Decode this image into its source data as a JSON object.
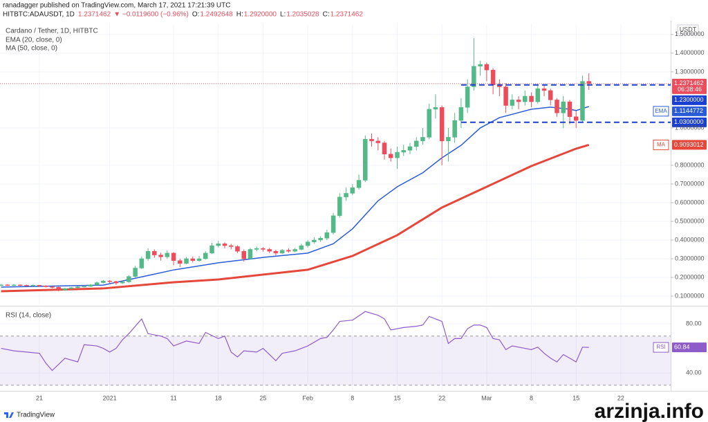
{
  "header": {
    "publisher": "ranadagger published on TradingView.com, March 17, 2021 17:21:39 UTC",
    "symbol": "HITBTC:ADAUSDT, 1D",
    "last": "1.2371462",
    "change": "▼ −0.0119600 (−0.96%)",
    "ohlc": [
      "O:",
      "1.2492648",
      "H:",
      "1.2920000",
      "L:",
      "1.2035028",
      "C:",
      "1.2371462"
    ]
  },
  "chart_data": [
    {
      "type": "candlestick",
      "title": "Cardano / Tether, 1D, HITBTC",
      "unit": "USDT",
      "up_color": "#53b987",
      "down_color": "#eb4d5c",
      "grid": true,
      "xlim": [
        -0.17,
        104.8
      ],
      "ylim": [
        0.0556,
        1.555
      ],
      "xticks": [
        {
          "value": 6,
          "label": "21"
        },
        {
          "value": 17,
          "label": "2021"
        },
        {
          "value": 27,
          "label": "11"
        },
        {
          "value": 34,
          "label": "18"
        },
        {
          "value": 41,
          "label": "25"
        },
        {
          "value": 48,
          "label": "Feb"
        },
        {
          "value": 55,
          "label": "8"
        },
        {
          "value": 62,
          "label": "15"
        },
        {
          "value": 69,
          "label": "22"
        },
        {
          "value": 76,
          "label": "Mar"
        },
        {
          "value": 83,
          "label": "8"
        },
        {
          "value": 90,
          "label": "15"
        },
        {
          "value": 97,
          "label": "22"
        }
      ],
      "yticks": [
        {
          "value": 0.1,
          "label": "0.1000000"
        },
        {
          "value": 0.2,
          "label": "0.2000000"
        },
        {
          "value": 0.3,
          "label": "0.3000000"
        },
        {
          "value": 0.4,
          "label": "0.4000000"
        },
        {
          "value": 0.5,
          "label": "0.5000000"
        },
        {
          "value": 0.6,
          "label": "0.6000000"
        },
        {
          "value": 0.7,
          "label": "0.7000000"
        },
        {
          "value": 0.8,
          "label": "0.8000000"
        },
        {
          "value": 1.0,
          "label": "1.0000000"
        },
        {
          "value": 1.3,
          "label": "1.3000000"
        },
        {
          "value": 1.4,
          "label": "1.4000000"
        },
        {
          "value": 1.5,
          "label": "1.5000000"
        }
      ],
      "candles": {
        "x": [
          0,
          1,
          2,
          3,
          4,
          5,
          6,
          7,
          8,
          9,
          10,
          11,
          12,
          13,
          14,
          15,
          16,
          17,
          18,
          19,
          20,
          21,
          22,
          23,
          24,
          25,
          26,
          27,
          28,
          29,
          30,
          31,
          32,
          33,
          34,
          35,
          36,
          37,
          38,
          39,
          40,
          41,
          42,
          43,
          44,
          45,
          46,
          47,
          48,
          49,
          50,
          51,
          52,
          53,
          54,
          55,
          56,
          57,
          58,
          59,
          60,
          61,
          62,
          63,
          64,
          65,
          66,
          67,
          68,
          69,
          70,
          71,
          72,
          73,
          74,
          75,
          76,
          77,
          78,
          79,
          80,
          81,
          82,
          83,
          84,
          85,
          86,
          87,
          88,
          89,
          90,
          91,
          92
        ],
        "open": [
          0.158,
          0.16,
          0.158,
          0.16,
          0.158,
          0.156,
          0.158,
          0.155,
          0.15,
          0.148,
          0.132,
          0.14,
          0.145,
          0.15,
          0.152,
          0.16,
          0.172,
          0.181,
          0.178,
          0.17,
          0.176,
          0.205,
          0.25,
          0.3,
          0.34,
          0.32,
          0.31,
          0.33,
          0.29,
          0.275,
          0.3,
          0.29,
          0.3,
          0.33,
          0.37,
          0.38,
          0.37,
          0.365,
          0.34,
          0.3,
          0.35,
          0.355,
          0.35,
          0.34,
          0.33,
          0.345,
          0.34,
          0.35,
          0.37,
          0.39,
          0.4,
          0.41,
          0.44,
          0.53,
          0.63,
          0.65,
          0.68,
          0.72,
          0.94,
          0.93,
          0.92,
          0.86,
          0.84,
          0.87,
          0.88,
          0.9,
          0.93,
          0.95,
          1.1,
          1.11,
          0.93,
          0.95,
          1.04,
          1.11,
          1.22,
          1.33,
          1.34,
          1.31,
          1.23,
          1.22,
          1.12,
          1.15,
          1.14,
          1.17,
          1.14,
          1.21,
          1.2,
          1.15,
          1.08,
          1.14,
          1.06,
          1.04,
          1.2492648
        ],
        "high": [
          0.164,
          0.163,
          0.164,
          0.162,
          0.161,
          0.162,
          0.16,
          0.158,
          0.153,
          0.15,
          0.145,
          0.149,
          0.154,
          0.157,
          0.165,
          0.178,
          0.186,
          0.186,
          0.182,
          0.185,
          0.212,
          0.262,
          0.312,
          0.355,
          0.35,
          0.332,
          0.345,
          0.335,
          0.3,
          0.31,
          0.312,
          0.315,
          0.34,
          0.385,
          0.395,
          0.388,
          0.38,
          0.372,
          0.35,
          0.358,
          0.365,
          0.362,
          0.358,
          0.348,
          0.352,
          0.355,
          0.358,
          0.38,
          0.4,
          0.415,
          0.42,
          0.455,
          0.545,
          0.65,
          0.68,
          0.7,
          0.75,
          0.96,
          0.97,
          0.95,
          0.93,
          0.89,
          0.9,
          0.91,
          0.92,
          0.95,
          1.0,
          1.13,
          1.18,
          1.12,
          1.0,
          1.08,
          1.16,
          1.26,
          1.48,
          1.36,
          1.35,
          1.32,
          1.26,
          1.24,
          1.18,
          1.17,
          1.2,
          1.19,
          1.23,
          1.23,
          1.21,
          1.16,
          1.17,
          1.15,
          1.09,
          1.28,
          1.292
        ],
        "low": [
          0.155,
          0.155,
          0.154,
          0.153,
          0.152,
          0.153,
          0.15,
          0.146,
          0.142,
          0.126,
          0.128,
          0.137,
          0.142,
          0.146,
          0.149,
          0.158,
          0.168,
          0.17,
          0.16,
          0.165,
          0.172,
          0.2,
          0.245,
          0.29,
          0.305,
          0.29,
          0.3,
          0.265,
          0.255,
          0.27,
          0.28,
          0.285,
          0.295,
          0.325,
          0.36,
          0.355,
          0.35,
          0.33,
          0.285,
          0.295,
          0.34,
          0.338,
          0.33,
          0.318,
          0.325,
          0.332,
          0.335,
          0.345,
          0.36,
          0.38,
          0.39,
          0.4,
          0.43,
          0.52,
          0.61,
          0.64,
          0.67,
          0.71,
          0.9,
          0.88,
          0.83,
          0.82,
          0.78,
          0.85,
          0.86,
          0.88,
          0.91,
          0.94,
          1.05,
          0.8,
          0.82,
          0.92,
          1.0,
          1.08,
          1.2,
          1.28,
          1.25,
          1.18,
          1.17,
          1.08,
          1.1,
          1.1,
          1.12,
          1.11,
          1.13,
          1.17,
          1.12,
          1.06,
          1.0,
          1.02,
          1.0,
          1.03,
          1.2035028
        ],
        "close": [
          0.16,
          0.158,
          0.16,
          0.158,
          0.156,
          0.158,
          0.155,
          0.15,
          0.148,
          0.132,
          0.14,
          0.145,
          0.15,
          0.152,
          0.16,
          0.172,
          0.181,
          0.178,
          0.17,
          0.176,
          0.205,
          0.25,
          0.3,
          0.34,
          0.32,
          0.31,
          0.33,
          0.29,
          0.275,
          0.3,
          0.29,
          0.3,
          0.33,
          0.37,
          0.38,
          0.37,
          0.365,
          0.34,
          0.3,
          0.35,
          0.355,
          0.35,
          0.34,
          0.33,
          0.345,
          0.34,
          0.35,
          0.37,
          0.39,
          0.4,
          0.41,
          0.44,
          0.53,
          0.63,
          0.65,
          0.68,
          0.72,
          0.94,
          0.93,
          0.92,
          0.86,
          0.84,
          0.87,
          0.88,
          0.9,
          0.93,
          0.95,
          1.1,
          1.11,
          0.93,
          0.95,
          1.04,
          1.11,
          1.22,
          1.33,
          1.34,
          1.31,
          1.23,
          1.22,
          1.12,
          1.15,
          1.14,
          1.17,
          1.14,
          1.21,
          1.2,
          1.15,
          1.08,
          1.14,
          1.06,
          1.04,
          1.2492648,
          1.2371462
        ]
      },
      "overlays": [
        {
          "name": "EMA (20, close, 0)",
          "short": "EMA",
          "color": "#2a5bd7",
          "width": 1.5,
          "x": [
            0,
            16,
            23,
            27,
            34,
            41,
            48,
            52,
            55,
            59,
            62,
            66,
            69,
            72,
            75,
            78,
            83,
            86,
            89,
            90,
            92
          ],
          "values": [
            0.148,
            0.159,
            0.21,
            0.24,
            0.278,
            0.307,
            0.33,
            0.38,
            0.46,
            0.61,
            0.685,
            0.76,
            0.84,
            0.907,
            1.0,
            1.055,
            1.1,
            1.111,
            1.1,
            1.093,
            1.1144772
          ]
        },
        {
          "name": "MA (50, close, 0)",
          "short": "MA",
          "color": "#e5473a",
          "width": 3,
          "x": [
            0,
            16,
            27,
            34,
            48,
            55,
            62,
            69,
            76,
            83,
            90,
            92
          ],
          "values": [
            0.126,
            0.141,
            0.174,
            0.189,
            0.241,
            0.315,
            0.426,
            0.574,
            0.685,
            0.796,
            0.889,
            0.9093012
          ]
        }
      ],
      "levels": [
        {
          "value": 1.23,
          "label": "1.2300000"
        },
        {
          "value": 1.03,
          "label": "1.0300000"
        }
      ],
      "level_color": "#1a3fd1",
      "level_from": 72,
      "countdown": "06:38:46"
    },
    {
      "type": "line",
      "title": "RSI (14, close)",
      "ylim": [
        25.4,
        93
      ],
      "yticks": [
        {
          "value": 80,
          "label": "80.00"
        },
        {
          "value": 40,
          "label": "40.00"
        }
      ],
      "band": [
        30,
        70
      ],
      "band_color": "#7e57c2",
      "series": [
        {
          "name": "RSI",
          "color": "#8e5cc9",
          "x": [
            0,
            2,
            4,
            6,
            7,
            8,
            10,
            12,
            13,
            15,
            16,
            17,
            18,
            19,
            20,
            22,
            23,
            25,
            26,
            27,
            29,
            31,
            32,
            34,
            35,
            36,
            37,
            38,
            40,
            41,
            42,
            43,
            44,
            46,
            48,
            50,
            51,
            52,
            53,
            55,
            57,
            59,
            60,
            61,
            63,
            65,
            66,
            67,
            68,
            69,
            70,
            71,
            72,
            73,
            74,
            75,
            76,
            77,
            78,
            79,
            80,
            82,
            83,
            84,
            85,
            86,
            87,
            88,
            89,
            90,
            91,
            92
          ],
          "values": [
            60,
            58,
            57,
            56,
            48,
            42,
            52,
            49,
            63,
            62,
            60,
            57,
            60,
            67,
            72,
            84,
            72,
            70,
            68,
            62,
            66,
            64,
            73,
            68,
            70,
            57,
            53,
            58,
            57,
            60,
            55,
            50,
            56,
            58,
            62,
            68,
            69,
            75,
            82,
            83,
            90,
            87,
            84,
            75,
            77,
            78,
            79,
            86,
            84,
            82,
            64,
            68,
            68,
            76,
            79,
            79,
            77,
            68,
            67,
            59,
            62,
            60,
            59,
            61,
            56,
            52,
            49,
            55,
            52,
            49,
            61,
            60.84
          ]
        }
      ]
    }
  ],
  "footer": {
    "brand": "TradingView",
    "watermark": "arzinja.info"
  }
}
